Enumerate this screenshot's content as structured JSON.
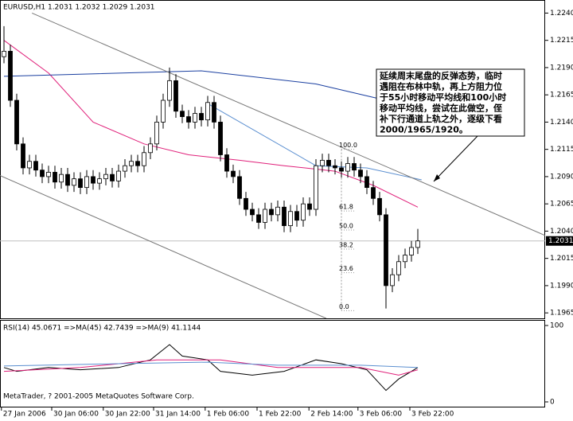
{
  "chart_data": {
    "type": "candlestick",
    "title": "EURUSD,H1  1.2031 1.2032 1.2029 1.2031",
    "xlim": [
      -0.625,
      85
    ],
    "ylim": [
      1.196,
      1.2252
    ],
    "xticks": [
      {
        "value": -0.4,
        "label": "27 Jan 2006"
      },
      {
        "value": 7.5,
        "label": "30 Jan 06:00"
      },
      {
        "value": 15.6,
        "label": "30 Jan 22:00"
      },
      {
        "value": 23.5,
        "label": "31 Jan 14:00"
      },
      {
        "value": 31.6,
        "label": "1 Feb 06:00"
      },
      {
        "value": 39.75,
        "label": "1 Feb 22:00"
      },
      {
        "value": 47.9,
        "label": "2 Feb 14:00"
      },
      {
        "value": 55.6,
        "label": "3 Feb 06:00"
      },
      {
        "value": 63.75,
        "label": "3 Feb 22:00"
      }
    ],
    "yticks": [
      {
        "value": 1.224,
        "label": "1.2240"
      },
      {
        "value": 1.2215,
        "label": "1.2215"
      },
      {
        "value": 1.219,
        "label": "1.2190"
      },
      {
        "value": 1.2165,
        "label": "1.2165"
      },
      {
        "value": 1.214,
        "label": "1.2140"
      },
      {
        "value": 1.2115,
        "label": "1.2115"
      },
      {
        "value": 1.209,
        "label": "1.2090"
      },
      {
        "value": 1.2065,
        "label": "1.2065"
      },
      {
        "value": 1.204,
        "label": "1.2040"
      },
      {
        "value": 1.2015,
        "label": "1.2015"
      },
      {
        "value": 1.199,
        "label": "1.1990"
      },
      {
        "value": 1.1965,
        "label": "1.1965"
      }
    ],
    "open": [
      1.22,
      1.2205,
      1.216,
      1.212,
      1.2098,
      1.2104,
      1.2096,
      1.209,
      1.2094,
      1.2085,
      1.2092,
      1.2082,
      1.2088,
      1.208,
      1.209,
      1.2084,
      1.2088,
      1.2092,
      1.2086,
      1.2095,
      1.21,
      1.2104,
      1.21,
      1.2112,
      1.212,
      1.214,
      1.216,
      1.2178,
      1.215,
      1.2145,
      1.214,
      1.2148,
      1.2142,
      1.2158,
      1.214,
      1.211,
      1.2095,
      1.209,
      1.207,
      1.206,
      1.2055,
      1.2048,
      1.206,
      1.2055,
      1.2062,
      1.2045,
      1.2058,
      1.205,
      1.2065,
      1.206,
      1.21,
      1.2105,
      1.21,
      1.2098,
      1.2095,
      1.2102,
      1.2096,
      1.209,
      1.208,
      1.207,
      1.2055,
      1.199,
      1.2,
      1.2012,
      1.2018,
      1.2025
    ],
    "high": [
      1.2228,
      1.2211,
      1.2166,
      1.2126,
      1.211,
      1.211,
      1.2102,
      1.21,
      1.21,
      1.2098,
      1.2098,
      1.2094,
      1.2094,
      1.2096,
      1.2096,
      1.2094,
      1.2098,
      1.2098,
      1.2101,
      1.2106,
      1.211,
      1.211,
      1.2118,
      1.2126,
      1.2146,
      1.2166,
      1.219,
      1.2184,
      1.2156,
      1.2151,
      1.2154,
      1.2154,
      1.2164,
      1.2164,
      1.2146,
      1.2116,
      1.2101,
      1.2096,
      1.2076,
      1.2066,
      1.2061,
      1.2066,
      1.2066,
      1.2068,
      1.2068,
      1.2064,
      1.2064,
      1.2071,
      1.2071,
      1.2106,
      1.2111,
      1.2111,
      1.2106,
      1.2104,
      1.2108,
      1.2108,
      1.2102,
      1.2096,
      1.2086,
      1.2076,
      1.2061,
      1.2006,
      1.2018,
      1.2024,
      1.2031,
      1.2042
    ],
    "low": [
      1.2194,
      1.2154,
      1.2114,
      1.2092,
      1.2092,
      1.209,
      1.2084,
      1.2084,
      1.2079,
      1.2079,
      1.2076,
      1.2076,
      1.2074,
      1.2074,
      1.2078,
      1.2078,
      1.2082,
      1.208,
      1.208,
      1.2089,
      1.2094,
      1.2094,
      1.2094,
      1.2106,
      1.2114,
      1.2134,
      1.2154,
      1.2144,
      1.2139,
      1.2134,
      1.2134,
      1.2136,
      1.2136,
      1.2134,
      1.2104,
      1.2089,
      1.2084,
      1.2064,
      1.2054,
      1.2049,
      1.2042,
      1.2042,
      1.2049,
      1.2049,
      1.2039,
      1.2039,
      1.2044,
      1.2044,
      1.2054,
      1.2054,
      1.2094,
      1.2094,
      1.2092,
      1.2089,
      1.2089,
      1.209,
      1.2084,
      1.2074,
      1.2064,
      1.2049,
      1.1969,
      1.1984,
      1.1994,
      1.2006,
      1.2012,
      1.2019
    ],
    "close": [
      1.2205,
      1.216,
      1.212,
      1.2098,
      1.2104,
      1.2096,
      1.209,
      1.2094,
      1.2085,
      1.2092,
      1.2082,
      1.2088,
      1.208,
      1.209,
      1.2084,
      1.2088,
      1.2092,
      1.2086,
      1.2095,
      1.21,
      1.2104,
      1.21,
      1.2112,
      1.212,
      1.214,
      1.216,
      1.2178,
      1.215,
      1.2145,
      1.214,
      1.2148,
      1.2142,
      1.2158,
      1.214,
      1.211,
      1.2095,
      1.209,
      1.207,
      1.206,
      1.2055,
      1.2048,
      1.206,
      1.2055,
      1.2062,
      1.2045,
      1.2058,
      1.205,
      1.2065,
      1.206,
      1.21,
      1.2105,
      1.21,
      1.2098,
      1.2095,
      1.2102,
      1.2096,
      1.209,
      1.208,
      1.207,
      1.2055,
      1.199,
      1.2,
      1.2012,
      1.2018,
      1.2025,
      1.2031
    ],
    "last_price": 1.2031,
    "last_price_label": "1.2031",
    "overlays": [
      {
        "color": "#e0207a",
        "x": [
          0,
          7,
          14,
          22,
          29,
          37,
          44,
          52,
          58,
          65
        ],
        "values": [
          1.2215,
          1.2185,
          1.214,
          1.212,
          1.211,
          1.2105,
          1.21,
          1.2095,
          1.2082,
          1.2062
        ]
      },
      {
        "color": "#1a3fa0",
        "x": [
          0,
          31,
          49,
          58.5
        ],
        "values": [
          1.2182,
          1.2187,
          1.2175,
          1.2162
        ]
      },
      {
        "color": "#5b8fd0",
        "x": [
          32,
          49,
          57,
          65.6
        ],
        "values": [
          1.2157,
          1.21,
          1.2098,
          1.2087
        ]
      },
      {
        "color": "#777777",
        "x": [
          4.4,
          85
        ],
        "values": [
          1.224,
          1.2036
        ]
      },
      {
        "color": "#777777",
        "x": [
          -0.625,
          50.6
        ],
        "values": [
          1.2091,
          1.196
        ]
      }
    ],
    "fib": {
      "x": 53,
      "high": 1.2115,
      "low": 1.1967,
      "levels": [
        {
          "value": 100,
          "label": "100.0"
        },
        {
          "value": 61.8,
          "label": "61.8"
        },
        {
          "value": 50,
          "label": "50.0"
        },
        {
          "value": 38.2,
          "label": "38.2"
        },
        {
          "value": 23.6,
          "label": "23.6"
        },
        {
          "value": 0,
          "label": "0.0"
        }
      ]
    },
    "annotation": [
      "延续周末尾盘的反弹态势，临时",
      "遇阻在布林中轨，再上方阻力位",
      "于55小时移动平均线和100小时",
      "移动平均线，尝试在此做空，侄",
      "补下行通道上轨之外，逐级下看",
      "2000/1965/1920。"
    ],
    "rsi": {
      "title": "RSI(14) 45.0671 =>MA(45) 42.7439 =>MA(9) 41.1144",
      "ylim": [
        0,
        100
      ],
      "yticks": [
        100,
        0
      ],
      "series": [
        {
          "color": "#000000",
          "x": [
            0,
            2,
            7,
            12,
            18,
            23,
            26,
            28,
            32,
            34,
            39,
            44,
            49,
            53,
            57,
            60,
            62,
            65
          ],
          "values": [
            45,
            40,
            45,
            42,
            45,
            55,
            75,
            60,
            55,
            40,
            35,
            40,
            55,
            50,
            42,
            15,
            30,
            45
          ]
        },
        {
          "color": "#e0207a",
          "x": [
            0,
            12,
            24,
            34,
            43,
            56,
            62,
            65
          ],
          "values": [
            40,
            45,
            55,
            55,
            45,
            45,
            35,
            42
          ]
        },
        {
          "color": "#5b8fd0",
          "x": [
            0,
            18,
            32,
            43,
            56,
            65
          ],
          "values": [
            47,
            50,
            52,
            48,
            48,
            45
          ]
        }
      ]
    },
    "footer": "MetaTrader, ? 2001-2005 MetaQuotes Software Corp."
  }
}
